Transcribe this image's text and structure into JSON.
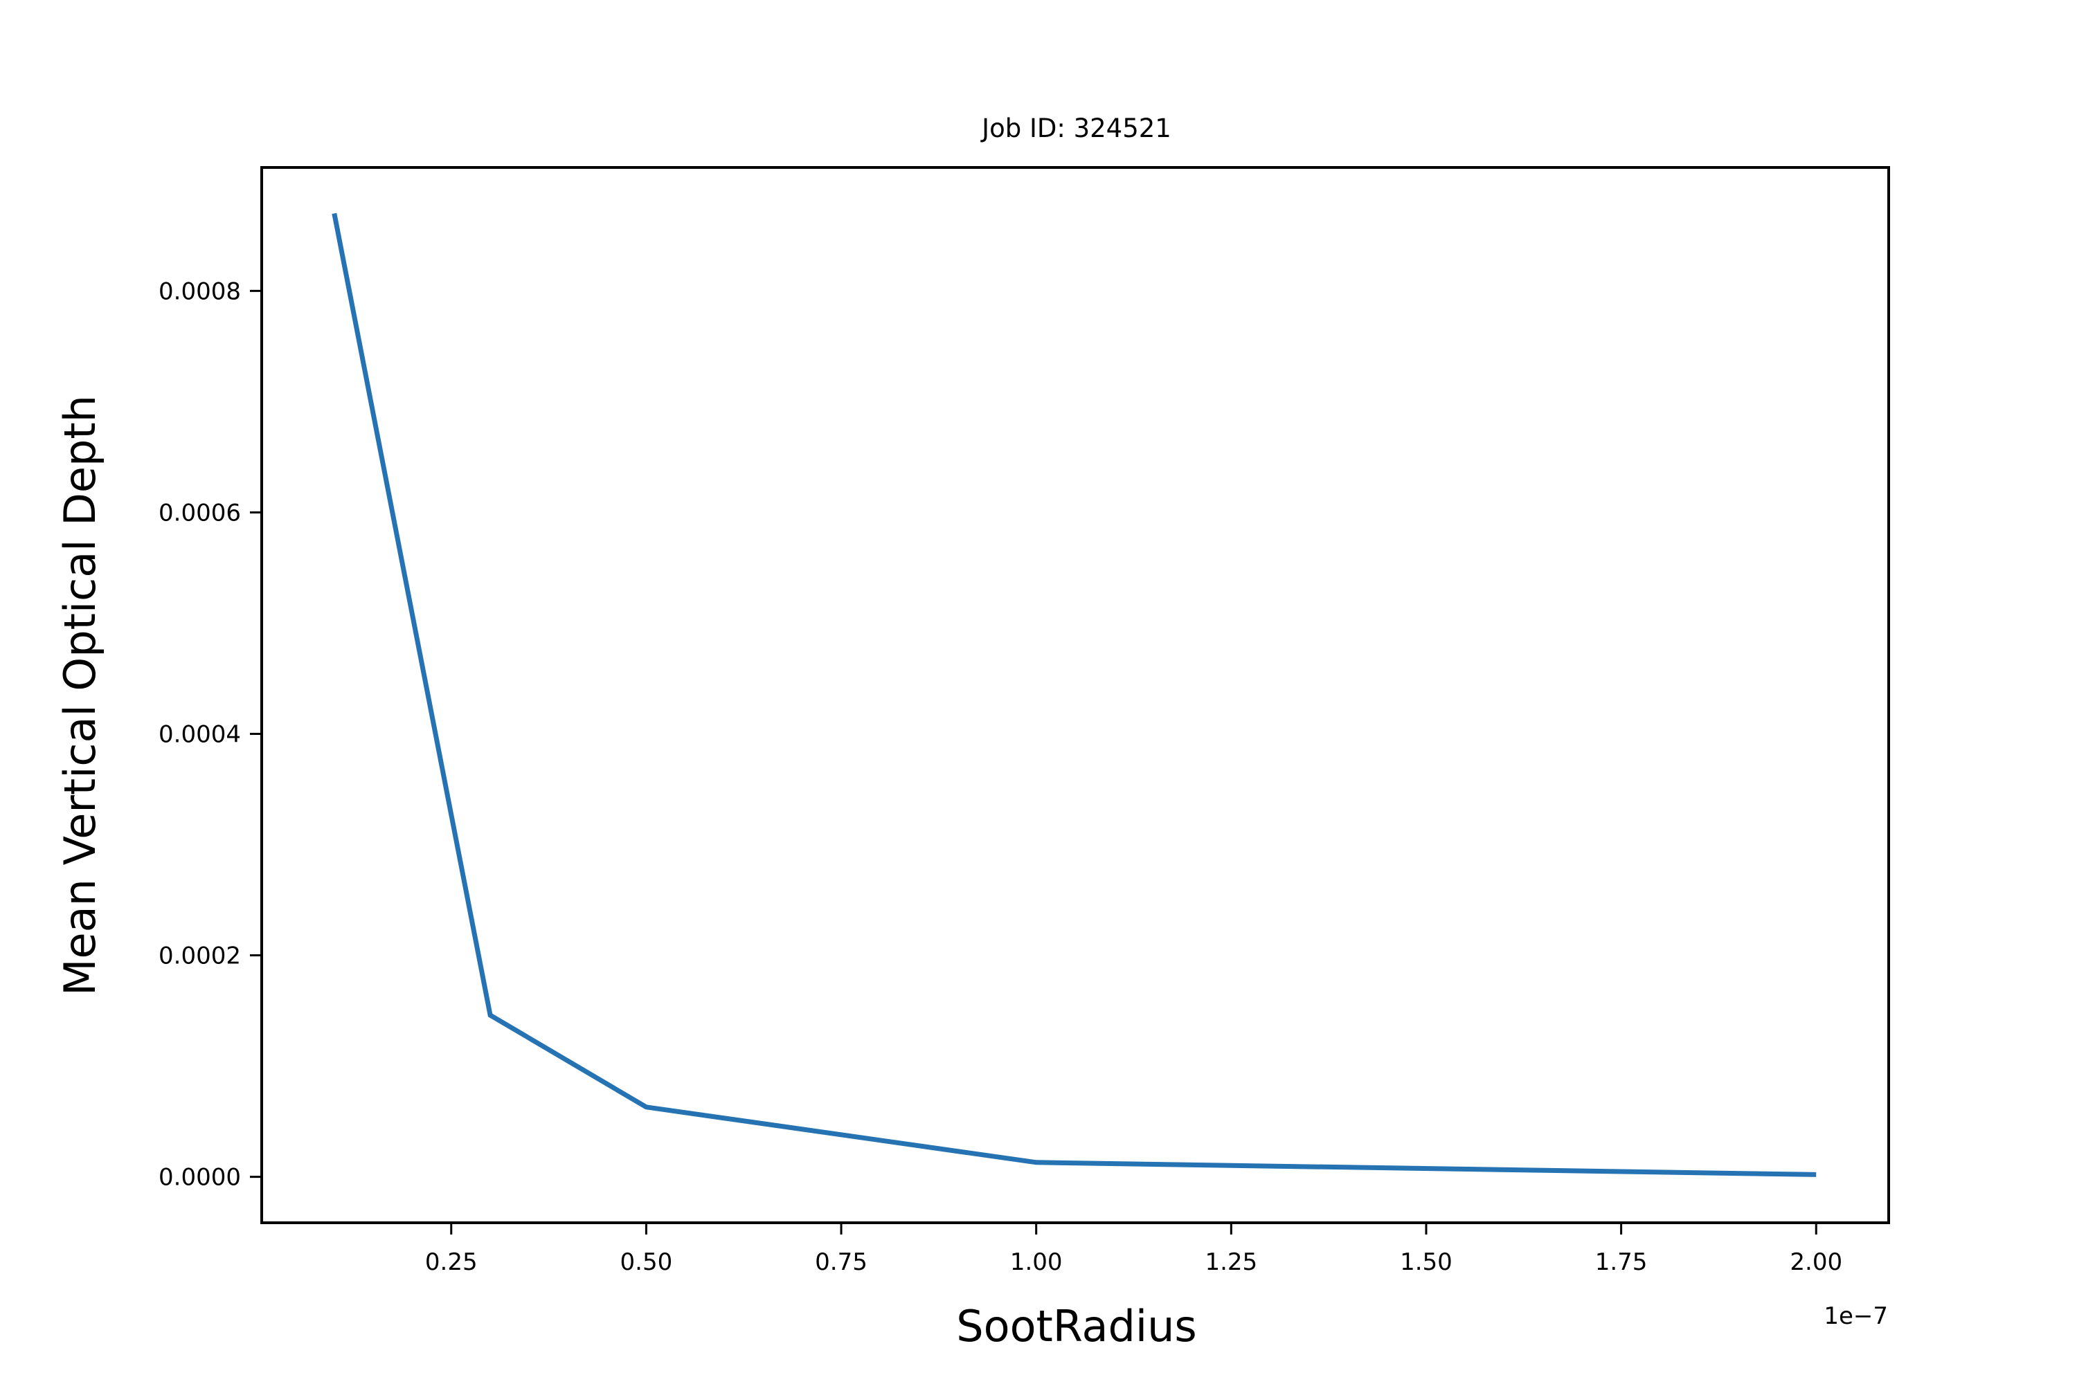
{
  "chart_data": {
    "type": "line",
    "title": "Job ID: 324521",
    "xlabel": "SootRadius",
    "ylabel": "Mean Vertical Optical Depth",
    "x_offset_text": "1e−7",
    "x_scale_factor": 1e-07,
    "x": [
      1e-08,
      3e-08,
      5e-08,
      1e-07,
      2e-07
    ],
    "series": [
      {
        "values": [
          0.00087,
          0.000146,
          6.3e-05,
          1.3e-05,
          2e-06
        ],
        "color": "#2673b4"
      }
    ],
    "xlim": [
      7e-10,
      2.093e-07
    ],
    "ylim": [
      -4.15e-05,
      0.0009115
    ],
    "xticks": [
      2.5e-08,
      5e-08,
      7.5e-08,
      1e-07,
      1.25e-07,
      1.5e-07,
      1.75e-07,
      2e-07
    ],
    "xtick_labels": [
      "0.25",
      "0.50",
      "0.75",
      "1.00",
      "1.25",
      "1.50",
      "1.75",
      "2.00"
    ],
    "yticks": [
      0,
      0.0002,
      0.0004,
      0.0006,
      0.0008
    ],
    "ytick_labels": [
      "0.0000",
      "0.0002",
      "0.0004",
      "0.0006",
      "0.0008"
    ],
    "grid": false,
    "legend": "none"
  }
}
